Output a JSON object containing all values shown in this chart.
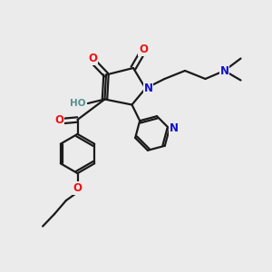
{
  "bg_color": "#ebebeb",
  "bond_color": "#1a1a1a",
  "o_color": "#ee1111",
  "n_color": "#1111cc",
  "h_color": "#5a9090",
  "lw": 1.6,
  "figsize": [
    3.0,
    3.0
  ],
  "dpi": 100,
  "xlim": [
    0,
    10
  ],
  "ylim": [
    0,
    10
  ]
}
